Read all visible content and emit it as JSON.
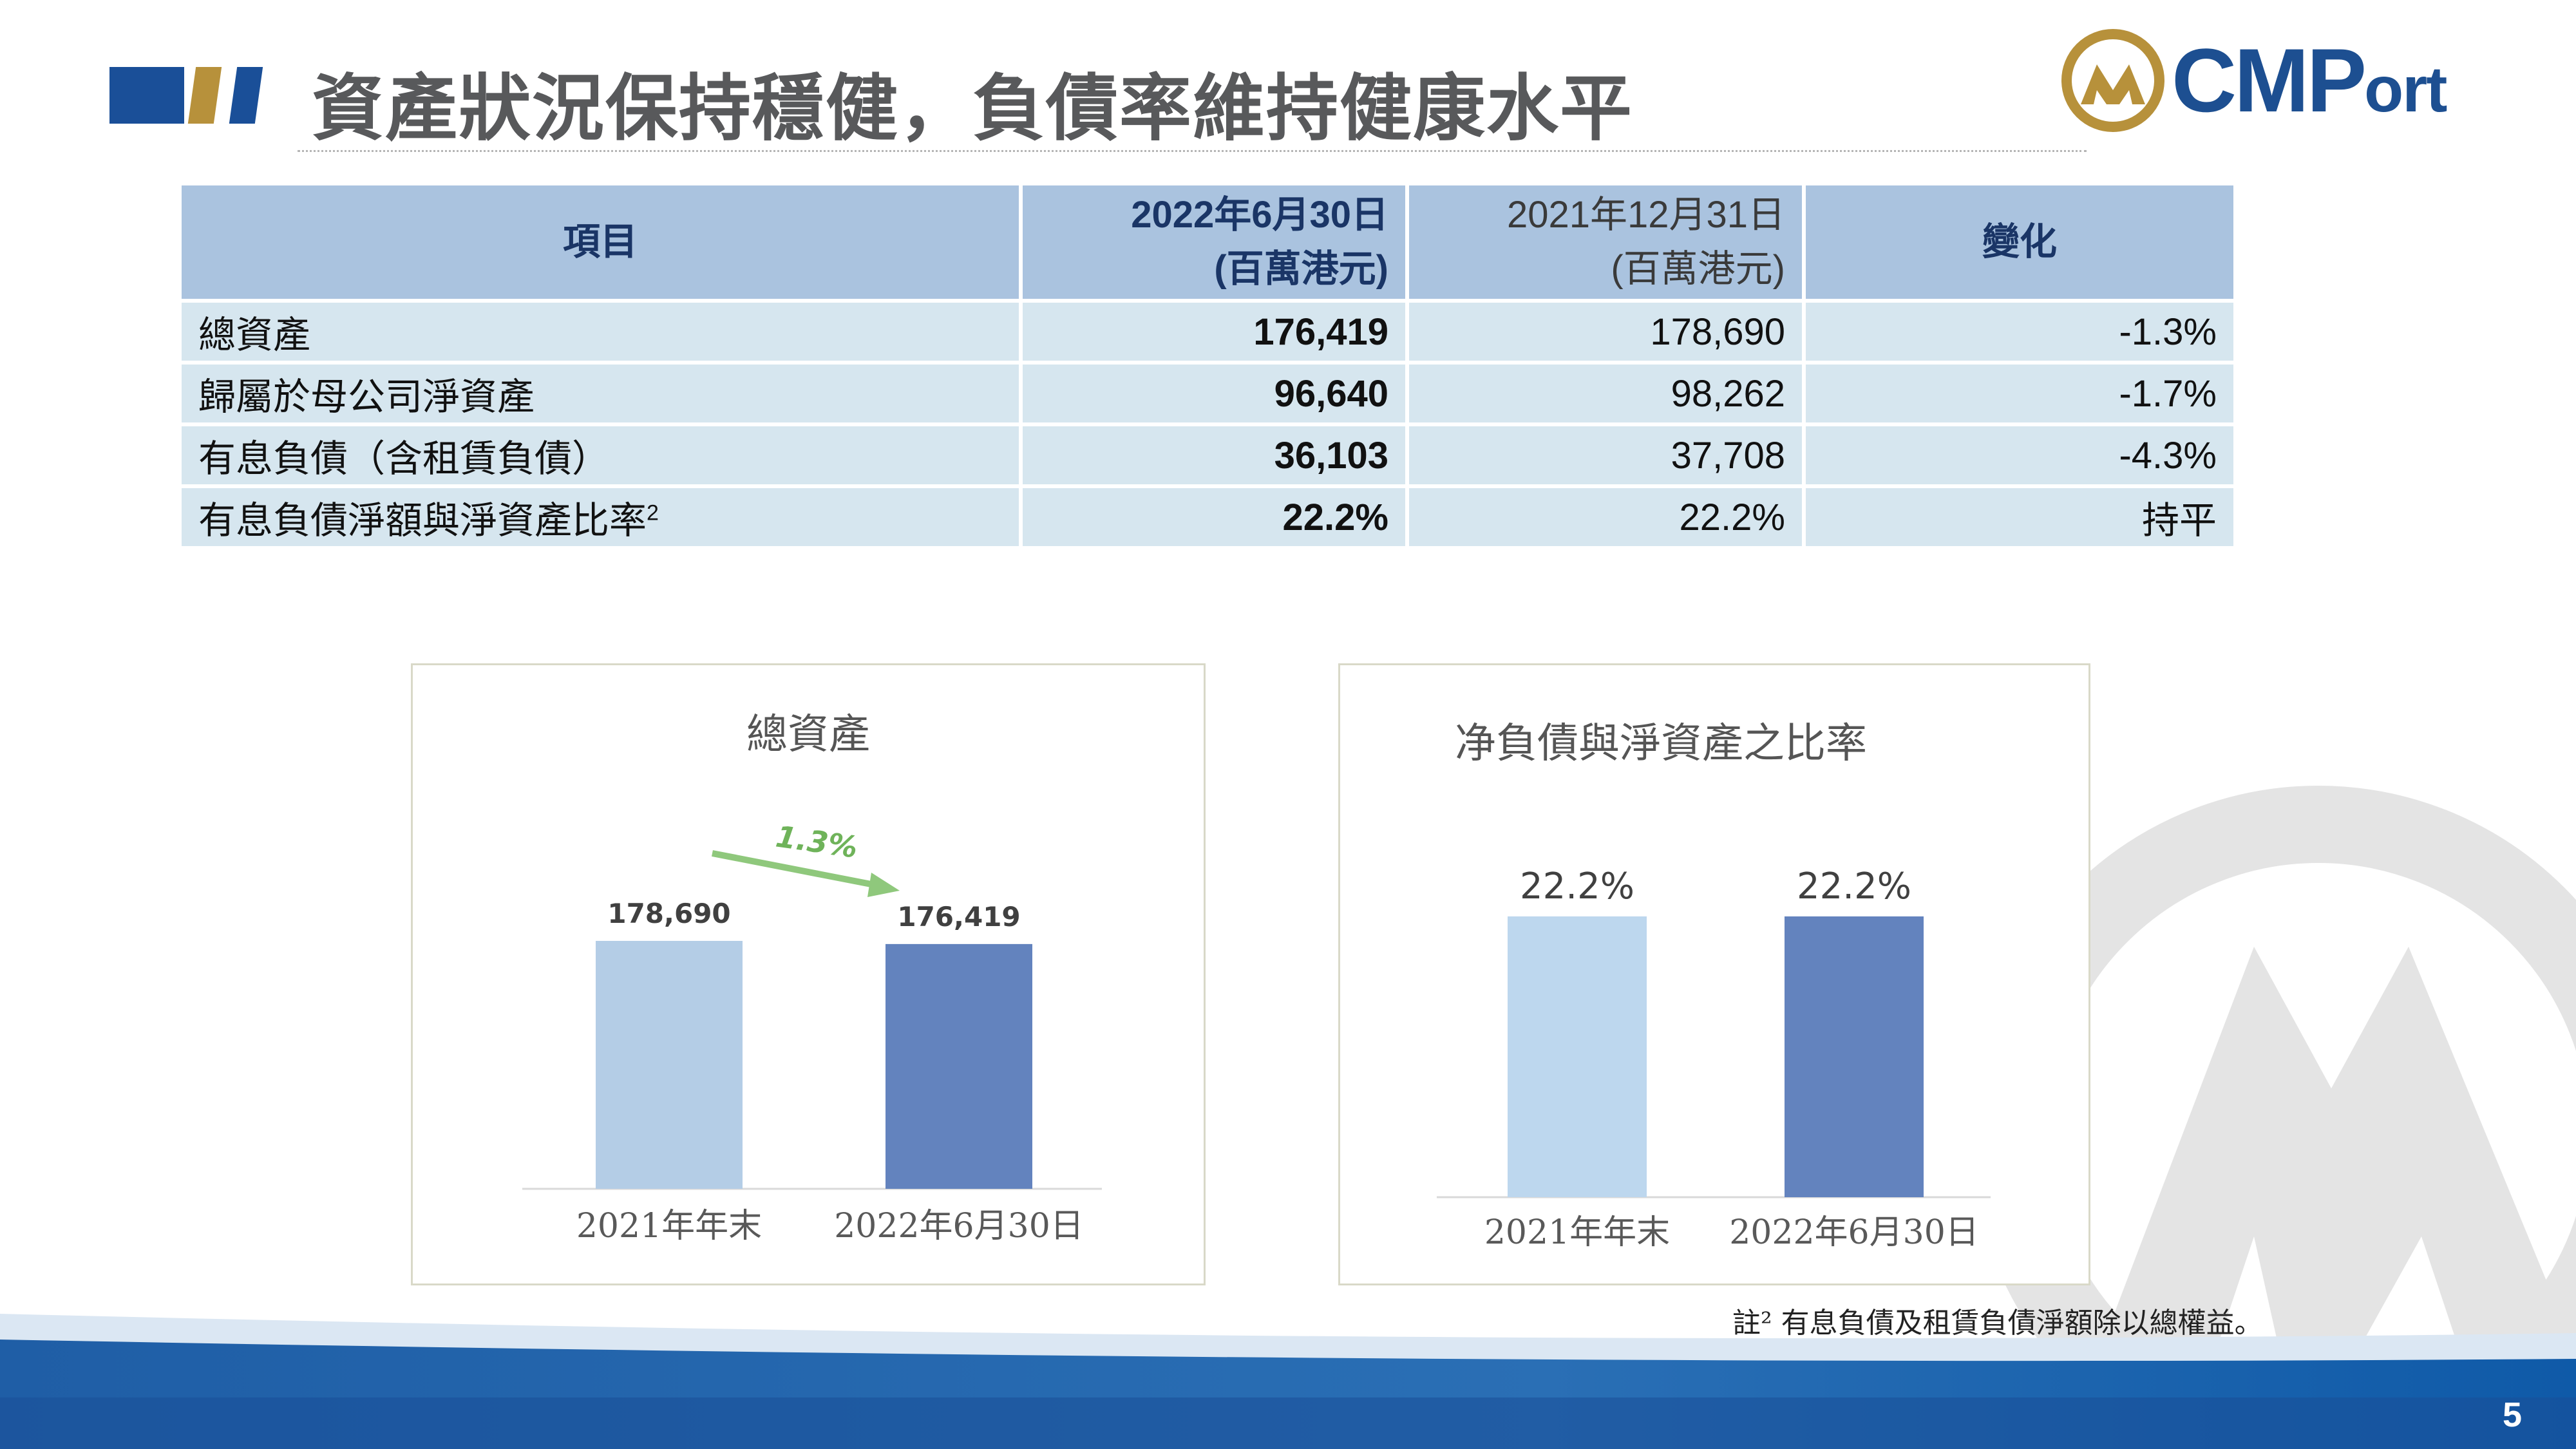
{
  "header": {
    "title": "資產狀況保持穩健，負債率維持健康水平",
    "logo_text_main": "CMP",
    "logo_text_small": "ort"
  },
  "table": {
    "headers": [
      {
        "line1": "項目",
        "line2": ""
      },
      {
        "line1": "2022年6月30日",
        "line2": "(百萬港元)"
      },
      {
        "line1": "2021年12月31日",
        "line2": "(百萬港元)"
      },
      {
        "line1": "變化",
        "line2": ""
      }
    ],
    "rows": [
      {
        "item": "總資產",
        "h2022": "176,419",
        "h2021": "178,690",
        "change": "-1.3%",
        "note": ""
      },
      {
        "item": "歸屬於母公司淨資產",
        "h2022": "96,640",
        "h2021": "98,262",
        "change": "-1.7%",
        "note": ""
      },
      {
        "item": "有息負債（含租賃負債）",
        "h2022": "36,103",
        "h2021": "37,708",
        "change": "-4.3%",
        "note": ""
      },
      {
        "item": "有息負債淨額與淨資產比率",
        "h2022": "22.2%",
        "h2021": "22.2%",
        "change": "持平",
        "note": "2"
      }
    ]
  },
  "chart_data": [
    {
      "type": "bar",
      "title": "總資產",
      "categories": [
        "2021年年末",
        "2022年6月30日"
      ],
      "values": [
        178690,
        176419
      ],
      "value_labels": [
        "178,690",
        "176,419"
      ],
      "annotation": "1.3%",
      "colors": [
        "#b4cde6",
        "#6383be"
      ],
      "ylim": [
        0,
        178690
      ]
    },
    {
      "type": "bar",
      "title": "净負債與淨資產之比率",
      "categories": [
        "2021年年末",
        "2022年6月30日"
      ],
      "values": [
        22.2,
        22.2
      ],
      "value_labels": [
        "22.2%",
        "22.2%"
      ],
      "colors": [
        "#bdd7ee",
        "#6383be"
      ],
      "ylim": [
        0,
        22.2
      ]
    }
  ],
  "footer": {
    "footnote_mark": "註²",
    "footnote_text": "有息負債及租賃負債淨額除以總權益。",
    "page_number": "5"
  },
  "colors": {
    "title_gray": "#58595b",
    "brand_blue": "#1d4f91",
    "brand_gold": "#b7913b",
    "header_row": "#aac3df",
    "body_row": "#d6e6ef",
    "arrow_green": "#8fc87c"
  }
}
